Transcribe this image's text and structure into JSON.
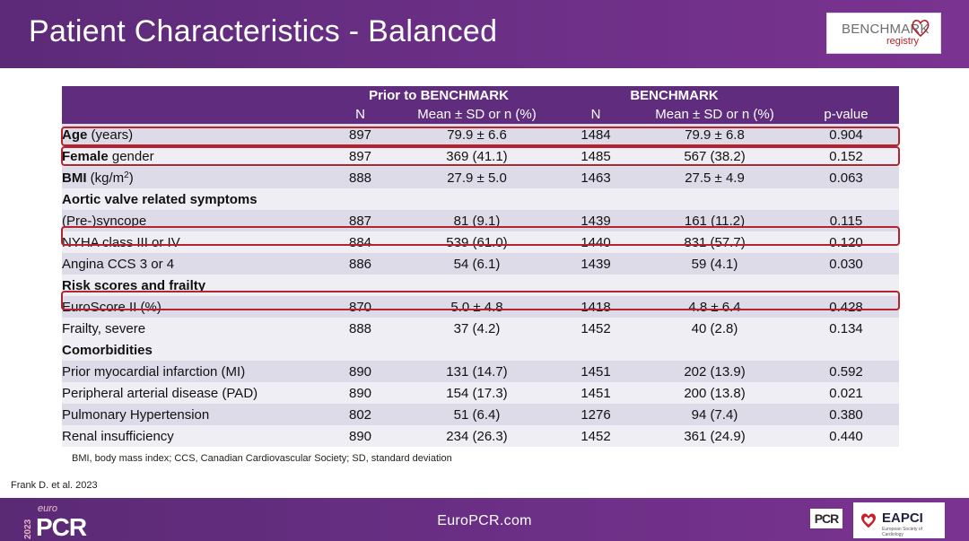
{
  "header": {
    "title": "Patient Characteristics - Balanced"
  },
  "logo": {
    "main": "BENCHMARK",
    "sub": "registry"
  },
  "table": {
    "group_prior": "Prior to BENCHMARK",
    "group_bench": "BENCHMARK",
    "col_n": "N",
    "col_mean": "Mean ± SD or n (%)",
    "col_p": "p-value",
    "rows": {
      "age": {
        "bold": "Age",
        "rest": " (years)",
        "n1": "897",
        "v1": "79.9 ± 6.6",
        "n2": "1484",
        "v2": "79.9 ± 6.8",
        "p": "0.904"
      },
      "female": {
        "bold": "Female",
        "rest": " gender",
        "n1": "897",
        "v1": "369 (41.1)",
        "n2": "1485",
        "v2": "567 (38.2)",
        "p": "0.152"
      },
      "bmi": {
        "bold": "BMI",
        "rest": " (kg/m",
        "sup": "2",
        "tail": ")",
        "n1": "888",
        "v1": "27.9 ± 5.0",
        "n2": "1463",
        "v2": "27.5 ± 4.9",
        "p": "0.063"
      },
      "sec_aortic": "Aortic valve related symptoms",
      "syncope": {
        "label": "(Pre-)syncope",
        "n1": "887",
        "v1": "81 (9.1)",
        "n2": "1439",
        "v2": "161 (11.2)",
        "p": "0.115"
      },
      "nyha": {
        "label": "NYHA class III or IV",
        "n1": "884",
        "v1": "539 (61.0)",
        "n2": "1440",
        "v2": "831 (57.7)",
        "p": "0.120"
      },
      "angina": {
        "label": "Angina CCS 3 or 4",
        "n1": "886",
        "v1": "54 (6.1)",
        "n2": "1439",
        "v2": "59 (4.1)",
        "p": "0.030"
      },
      "sec_risk": "Risk scores and frailty",
      "euroscore": {
        "label": "EuroScore II (%)",
        "n1": "870",
        "v1": "5.0 ± 4.8",
        "n2": "1418",
        "v2": "4.8 ± 6.4",
        "p": "0.428"
      },
      "frailty": {
        "label": "Frailty, severe",
        "n1": "888",
        "v1": "37 (4.2)",
        "n2": "1452",
        "v2": "40 (2.8)",
        "p": "0.134"
      },
      "sec_comorb": "Comorbidities",
      "mi": {
        "label": "Prior myocardial infarction (MI)",
        "n1": "890",
        "v1": "131 (14.7)",
        "n2": "1451",
        "v2": "202 (13.9)",
        "p": "0.592"
      },
      "pad": {
        "label": "Peripheral arterial disease (PAD)",
        "n1": "890",
        "v1": "154 (17.3)",
        "n2": "1451",
        "v2": "200 (13.8)",
        "p": "0.021"
      },
      "pht": {
        "label": "Pulmonary Hypertension",
        "n1": "802",
        "v1": "51 (6.4)",
        "n2": "1276",
        "v2": "94 (7.4)",
        "p": "0.380"
      },
      "renal": {
        "label": "Renal insufficiency",
        "n1": "890",
        "v1": "234 (26.3)",
        "n2": "1452",
        "v2": "361 (24.9)",
        "p": "0.440"
      }
    }
  },
  "footnote": "BMI, body mass index; CCS, Canadian Cardiovascular Society; SD, standard deviation",
  "reference": "Frank D. et al. 2023",
  "footer": {
    "year": "2023",
    "euro": "euro",
    "pcr": "PCR",
    "site": "EuroPCR.com",
    "badge": "PCR",
    "eapci": "EAPCI",
    "eapci_sub": "European Society of Cardiology",
    "colors": {
      "band": "#6a2f85",
      "highlight": "#b42330"
    }
  }
}
